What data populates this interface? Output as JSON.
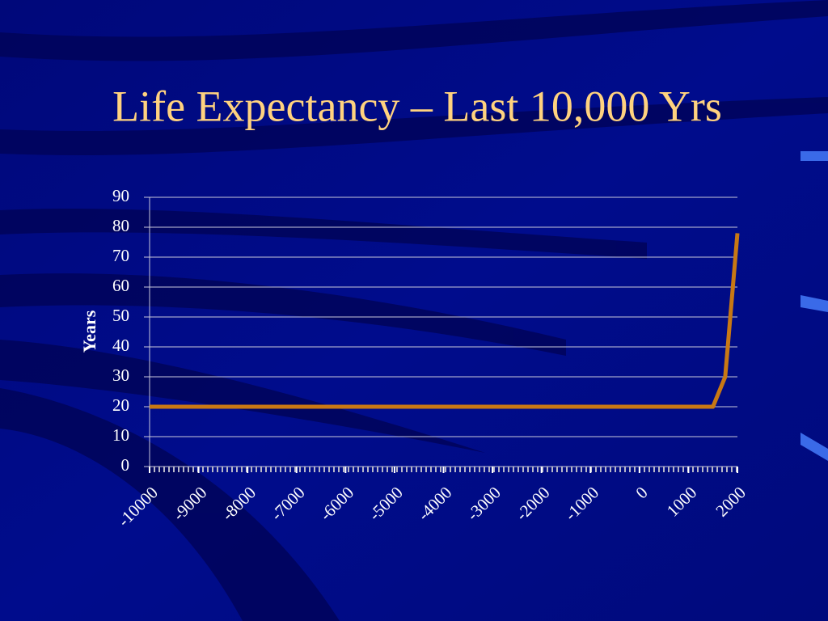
{
  "chart_data": {
    "type": "line",
    "title": "Life Expectancy – Last 10,000 Yrs",
    "y_label": "Years",
    "x": [
      -10000,
      1500,
      1750,
      2000
    ],
    "series": [
      {
        "name": "Life expectancy",
        "color": "#c87814",
        "values": [
          20,
          20,
          30,
          78
        ]
      }
    ],
    "xlim": [
      -10000,
      2000
    ],
    "xticks": [
      -10000,
      -9000,
      -8000,
      -7000,
      -6000,
      -5000,
      -4000,
      -3000,
      -2000,
      -1000,
      0,
      1000,
      2000
    ],
    "ylim": [
      0,
      90
    ],
    "yticks": [
      0,
      10,
      20,
      30,
      40,
      50,
      60,
      70,
      80,
      90
    ],
    "grid": true
  }
}
